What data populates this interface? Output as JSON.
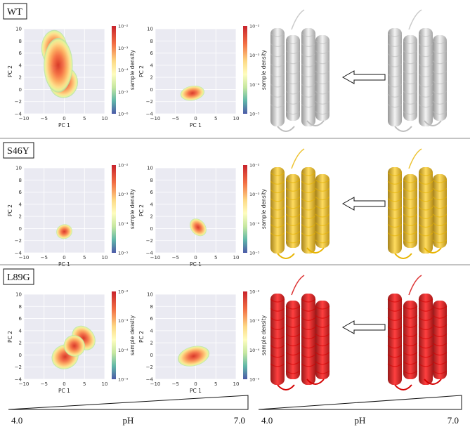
{
  "rows": [
    {
      "label": "WT",
      "plots": [
        {
          "xlabel": "PC 1",
          "ylabel": "PC 2",
          "cbar_label": "sample density",
          "cbar_ticks": [
            "10⁻²",
            "10⁻³",
            "10⁻⁴",
            "10⁻⁵",
            "10⁻⁶"
          ]
        },
        {
          "xlabel": "PC 1",
          "ylabel": "PC 2",
          "cbar_label": "sample density",
          "cbar_ticks": [
            "10⁻²",
            "10⁻³",
            "10⁻⁴",
            "10⁻⁵"
          ]
        }
      ],
      "protein_color": "gray"
    },
    {
      "label": "S46Y",
      "plots": [
        {
          "xlabel": "PC 1",
          "ylabel": "PC 2",
          "cbar_label": "sample density",
          "cbar_ticks": [
            "10⁻²",
            "10⁻³",
            "10⁻⁴",
            "10⁻⁵"
          ]
        },
        {
          "xlabel": "PC 1",
          "ylabel": "PC 2",
          "cbar_label": "sample density",
          "cbar_ticks": [
            "10⁻²",
            "10⁻³",
            "10⁻⁴",
            "10⁻⁵"
          ]
        }
      ],
      "protein_color": "gold"
    },
    {
      "label": "L89G",
      "plots": [
        {
          "xlabel": "PC 1",
          "ylabel": "PC 2",
          "cbar_label": "sample density",
          "cbar_ticks": [
            "10⁻²",
            "10⁻³",
            "10⁻⁴",
            "10⁻⁵"
          ]
        },
        {
          "xlabel": "PC 1",
          "ylabel": "PC 2",
          "cbar_label": "sample density",
          "cbar_ticks": [
            "10⁻²",
            "10⁻³",
            "10⁻⁴",
            "10⁻⁵"
          ]
        }
      ],
      "protein_color": "red"
    }
  ],
  "axes": {
    "x_ticks": [
      "−10",
      "−5",
      "0",
      "5",
      "10"
    ],
    "y_ticks": [
      "10",
      "8",
      "6",
      "4",
      "2",
      "0",
      "−2",
      "−4"
    ]
  },
  "ph_scale": {
    "low": "4.0",
    "label": "pH",
    "high": "7.0"
  },
  "colors": {
    "gray": "#bdbdbd",
    "gold": "#e8b400",
    "red": "#d40000"
  }
}
